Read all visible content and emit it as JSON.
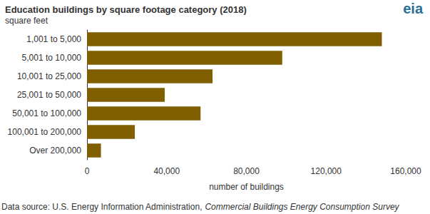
{
  "chart_data": {
    "type": "bar",
    "orientation": "horizontal",
    "title": "Education buildings by square footage category (2018)",
    "subtitle": "square feet",
    "x_label": "number of buildings",
    "source": [
      "Data source: U.S. Energy Information Administration, ",
      "Commercial Buildings Energy Consumption Survey"
    ],
    "logo": "eia",
    "categories": [
      "1,001 to 5,000",
      "5,001 to 10,000",
      "10,001 to 25,000",
      "25,001 to 50,000",
      "50,001 to 100,000",
      "100,001 to 200,000",
      "Over 200,000"
    ],
    "values": [
      148000,
      98000,
      63000,
      39000,
      57000,
      24000,
      7000
    ],
    "color": "#7f5f00",
    "xlim": [
      0,
      160000
    ],
    "xticks": [
      0,
      {
        "value": 40000,
        "label": "40,000"
      },
      {
        "value": 80000,
        "label": "80,000"
      },
      {
        "value": 120000,
        "label": "120,000"
      },
      {
        "value": 160000,
        "label": "160,000"
      }
    ],
    "grid": false
  }
}
